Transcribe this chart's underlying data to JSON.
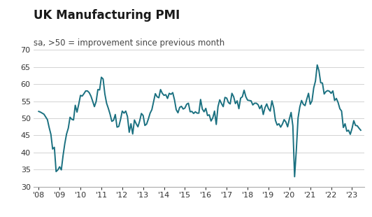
{
  "title": "UK Manufacturing PMI",
  "subtitle": "sa, >50 = improvement since previous month",
  "line_color": "#1a7080",
  "background_color": "#ffffff",
  "ylim": [
    30,
    70
  ],
  "yticks": [
    30,
    35,
    40,
    45,
    50,
    55,
    60,
    65,
    70
  ],
  "xtick_labels": [
    "'08",
    "'09",
    "'10",
    "'11",
    "'12",
    "'13",
    "'14",
    "'15",
    "'16",
    "'17",
    "'18",
    "'19",
    "'20",
    "'21",
    "'22",
    "'23"
  ],
  "title_fontsize": 12,
  "subtitle_fontsize": 8.5,
  "line_width": 1.4,
  "pmi_values": [
    52.0,
    51.8,
    51.5,
    51.2,
    50.4,
    49.6,
    47.3,
    45.3,
    41.0,
    41.5,
    34.4,
    34.9,
    35.8,
    34.9,
    39.1,
    42.6,
    45.4,
    47.1,
    50.3,
    49.7,
    49.5,
    53.8,
    51.8,
    54.1,
    56.7,
    56.5,
    57.2,
    58.0,
    58.0,
    57.5,
    56.5,
    55.0,
    53.4,
    54.9,
    58.4,
    58.3,
    62.0,
    61.5,
    57.1,
    54.4,
    52.9,
    51.2,
    49.1,
    49.4,
    51.1,
    47.4,
    47.6,
    49.6,
    52.1,
    51.5,
    52.1,
    50.5,
    45.9,
    48.4,
    45.4,
    49.5,
    48.4,
    47.5,
    49.2,
    51.4,
    50.8,
    47.9,
    48.3,
    49.8,
    51.5,
    52.5,
    54.8,
    57.2,
    56.3,
    56.0,
    58.4,
    57.3,
    56.7,
    56.9,
    55.8,
    57.3,
    57.0,
    57.5,
    55.4,
    52.5,
    51.6,
    53.2,
    53.5,
    52.7,
    53.0,
    54.1,
    54.4,
    51.9,
    52.0,
    51.4,
    51.9,
    51.5,
    51.5,
    55.5,
    52.7,
    51.9,
    52.9,
    50.8,
    51.0,
    49.2,
    50.1,
    52.1,
    48.2,
    53.4,
    55.4,
    54.3,
    53.4,
    56.1,
    55.9,
    54.6,
    54.2,
    57.3,
    56.3,
    54.3,
    55.1,
    52.8,
    55.9,
    56.3,
    58.2,
    56.3,
    55.3,
    55.2,
    55.1,
    53.9,
    54.4,
    54.4,
    54.0,
    52.8,
    53.8,
    51.1,
    53.1,
    54.2,
    52.8,
    52.1,
    55.1,
    53.1,
    49.4,
    48.0,
    48.4,
    47.4,
    48.3,
    49.6,
    48.9,
    47.5,
    49.8,
    51.7,
    47.8,
    32.9,
    40.7,
    50.1,
    53.3,
    55.2,
    54.1,
    53.7,
    55.6,
    57.3,
    54.1,
    55.1,
    58.9,
    60.9,
    65.6,
    63.9,
    60.4,
    60.3,
    57.1,
    57.8,
    58.1,
    57.9,
    57.3,
    58.0,
    55.2,
    55.8,
    54.6,
    52.8,
    52.1,
    47.3,
    48.4,
    46.2,
    46.5,
    45.3,
    47.0,
    49.3,
    47.9,
    47.8,
    47.1,
    46.5
  ],
  "start_year": 2008,
  "xlim_left": 2007.75,
  "xlim_right": 2023.6
}
